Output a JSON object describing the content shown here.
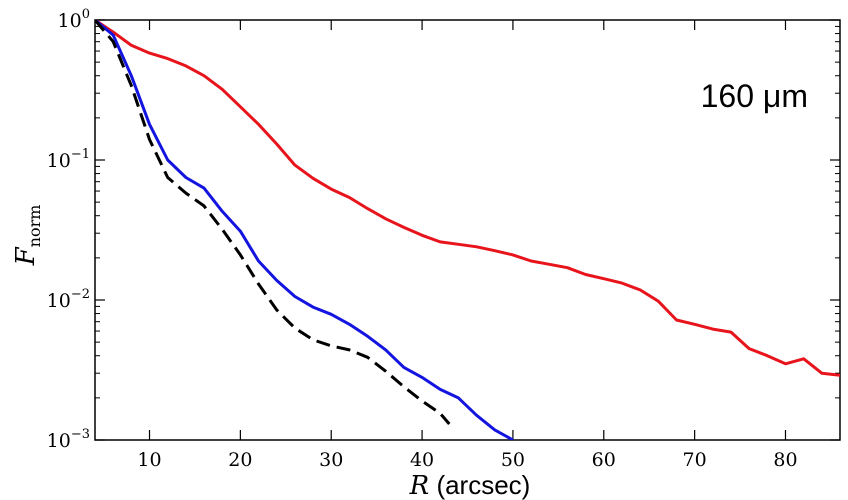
{
  "chart_data": {
    "type": "line",
    "annotation": "160 μm",
    "xlabel": {
      "symbol": "R",
      "unit": " (arcsec)"
    },
    "ylabel": {
      "symbol": "F",
      "subscript": "norm"
    },
    "xlim": [
      4,
      86
    ],
    "ylim": [
      0.001,
      1
    ],
    "yscale": "log",
    "grid": false,
    "x_ticks": [
      10,
      20,
      30,
      40,
      50,
      60,
      70,
      80
    ],
    "y_ticks": [
      {
        "value": 0.001,
        "base": "10",
        "exp": "−3"
      },
      {
        "value": 0.01,
        "base": "10",
        "exp": "−2"
      },
      {
        "value": 0.1,
        "base": "10",
        "exp": "−1"
      },
      {
        "value": 1,
        "base": "10",
        "exp": "0"
      }
    ],
    "series": [
      {
        "color": "#e8141c",
        "style": "solid",
        "x": [
          4,
          6,
          8,
          10,
          12,
          14,
          16,
          18,
          20,
          22,
          24,
          26,
          28,
          30,
          32,
          34,
          36,
          38,
          40,
          42,
          44,
          46,
          48,
          50,
          52,
          54,
          56,
          58,
          60,
          62,
          64,
          66,
          68,
          70,
          72,
          74,
          76,
          78,
          80,
          82,
          84,
          86
        ],
        "y": [
          1.0,
          0.82,
          0.66,
          0.58,
          0.53,
          0.47,
          0.4,
          0.32,
          0.24,
          0.18,
          0.13,
          0.092,
          0.074,
          0.062,
          0.054,
          0.045,
          0.038,
          0.033,
          0.029,
          0.026,
          0.025,
          0.024,
          0.0225,
          0.021,
          0.019,
          0.018,
          0.017,
          0.0152,
          0.0142,
          0.0132,
          0.0118,
          0.0098,
          0.0072,
          0.0067,
          0.0062,
          0.0059,
          0.0045,
          0.004,
          0.0035,
          0.0038,
          0.003,
          0.0029
        ]
      },
      {
        "color": "#1414e0",
        "style": "solid",
        "x": [
          4,
          6,
          8,
          10,
          12,
          14,
          16,
          18,
          20,
          22,
          24,
          26,
          28,
          30,
          32,
          34,
          36,
          38,
          40,
          42,
          44,
          46,
          48,
          50
        ],
        "y": [
          1.0,
          0.78,
          0.4,
          0.18,
          0.1,
          0.075,
          0.063,
          0.043,
          0.031,
          0.019,
          0.0138,
          0.0106,
          0.0089,
          0.0079,
          0.0067,
          0.0055,
          0.0044,
          0.0033,
          0.0028,
          0.0023,
          0.002,
          0.0015,
          0.00118,
          0.001
        ]
      },
      {
        "color": "#000000",
        "style": "dashed",
        "x": [
          4,
          6,
          8,
          10,
          12,
          14,
          16,
          18,
          20,
          22,
          24,
          26,
          28,
          30,
          32,
          34,
          36,
          38,
          40,
          42,
          43
        ],
        "y": [
          1.0,
          0.7,
          0.34,
          0.14,
          0.075,
          0.058,
          0.047,
          0.032,
          0.021,
          0.013,
          0.0085,
          0.0063,
          0.0052,
          0.0047,
          0.0044,
          0.0039,
          0.0031,
          0.0024,
          0.0019,
          0.00155,
          0.0013
        ]
      }
    ]
  }
}
